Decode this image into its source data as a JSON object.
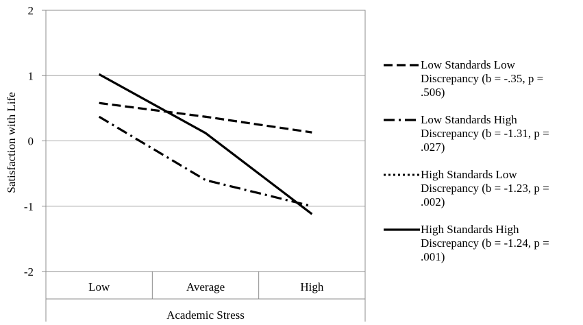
{
  "chart_data": {
    "type": "line",
    "title": "",
    "xlabel": "Academic Stress",
    "ylabel": "Satisfaction with Life",
    "categories": [
      "Low",
      "Average",
      "High"
    ],
    "ylim": [
      -2,
      2
    ],
    "yticks": [
      "-2",
      "-1",
      "0",
      "1",
      "2"
    ],
    "grid": true,
    "legend_position": "right",
    "series": [
      {
        "legend_lines": [
          "Low Standards Low",
          "Discrepancy (b = -.35, p =",
          ".506)"
        ],
        "style": "dashed",
        "color": "#000000",
        "values": [
          0.58,
          0.37,
          0.13
        ]
      },
      {
        "legend_lines": [
          "Low Standards High",
          "Discrepancy (b = -1.31, p =",
          ".027)"
        ],
        "style": "dash-dot",
        "color": "#000000",
        "values": [
          0.37,
          -0.6,
          -1.0
        ]
      },
      {
        "legend_lines": [
          "High Standards Low",
          "Discrepancy (b = -1.23, p =",
          ".002)"
        ],
        "style": "dotted",
        "color": "#000000",
        "values": [
          1.02,
          0.12,
          -1.12
        ]
      },
      {
        "legend_lines": [
          "High Standards High",
          "Discrepancy (b = -1.24, p =",
          ".001)"
        ],
        "style": "solid",
        "color": "#000000",
        "values": [
          1.02,
          0.12,
          -1.12
        ]
      }
    ]
  }
}
